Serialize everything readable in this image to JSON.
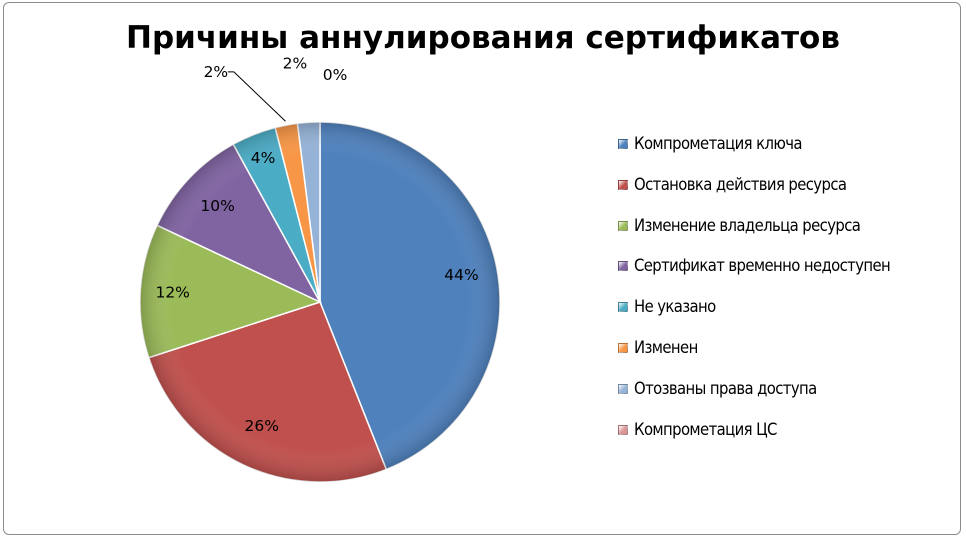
{
  "chart_data": {
    "type": "pie",
    "title": "Причины аннулирования сертификатов",
    "categories": [
      "Компрометация ключа",
      "Остановка действия ресурса",
      "Изменение владельца ресурса",
      "Сертификат временно недоступен",
      "Не указано",
      "Изменен",
      "Отозваны права доступа",
      "Компрометация ЦС"
    ],
    "values": [
      44,
      26,
      12,
      10,
      4,
      2,
      2,
      0
    ],
    "data_labels": [
      "44%",
      "26%",
      "12%",
      "10%",
      "4%",
      "2%",
      "2%",
      "0%"
    ],
    "colors": [
      "#4f81bd",
      "#c0504d",
      "#9bbb59",
      "#8064a2",
      "#4bacc6",
      "#f79646",
      "#95b3d7",
      "#d99694"
    ],
    "legend_position": "right"
  }
}
